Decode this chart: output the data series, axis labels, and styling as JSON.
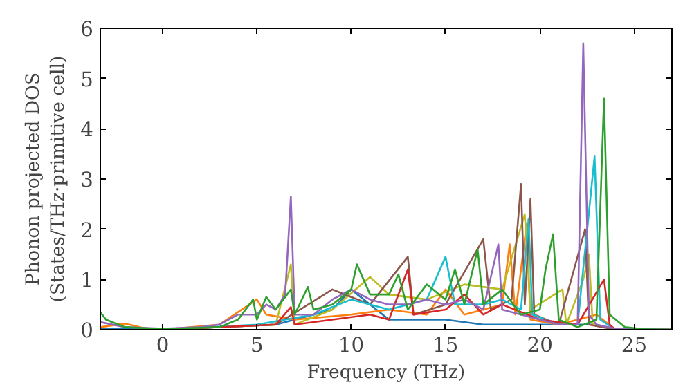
{
  "chart_data": {
    "type": "line",
    "xlabel": "Frequency (THz)",
    "ylabel": "Phonon projected DOS\n(States/THz·primitive cell)",
    "xlim": [
      -3.3,
      27
    ],
    "ylim": [
      0,
      6
    ],
    "xticks": [
      0,
      5,
      10,
      15,
      20,
      25
    ],
    "yticks": [
      0,
      1,
      2,
      3,
      4,
      5,
      6
    ],
    "grid": false,
    "series": [
      {
        "color": "#1f77b4",
        "x": [
          -3.3,
          0,
          6,
          9,
          10,
          12,
          15,
          17,
          20,
          23,
          24,
          27
        ],
        "values": [
          0.02,
          0,
          0.1,
          0.4,
          0.8,
          0.2,
          0.2,
          0.1,
          0.1,
          0.1,
          0,
          0
        ]
      },
      {
        "color": "#ff7f0e",
        "x": [
          -3.3,
          -2,
          -1,
          0,
          3,
          5,
          5.5,
          7,
          10,
          12,
          14,
          15,
          16,
          18,
          18.4,
          18.7,
          19.3,
          19.5,
          21,
          23,
          24,
          27
        ],
        "values": [
          0.05,
          0.12,
          0.03,
          0,
          0.1,
          0.6,
          0.3,
          0.2,
          0.3,
          0.4,
          0.3,
          0.8,
          0.3,
          0.5,
          1.7,
          0.3,
          2.1,
          0.2,
          0.1,
          0.3,
          0,
          0
        ]
      },
      {
        "color": "#bcbd22",
        "x": [
          0,
          6,
          6.8,
          7,
          9,
          11,
          12,
          14,
          16,
          18,
          19.2,
          19.5,
          21.2,
          21.4,
          22.3,
          22.6,
          22.8,
          24,
          27
        ],
        "values": [
          0,
          0.1,
          1.3,
          0.1,
          0.4,
          1.05,
          0.7,
          0.6,
          0.9,
          0.8,
          2.3,
          0.4,
          0.8,
          0.1,
          1.0,
          1.5,
          0.1,
          0,
          0
        ]
      },
      {
        "color": "#8c564b",
        "x": [
          0,
          6,
          9,
          11,
          13,
          13.3,
          15,
          17,
          17.4,
          18.5,
          19,
          19.2,
          19.5,
          19.7,
          21,
          22.4,
          22.6,
          24,
          27
        ],
        "values": [
          0,
          0.1,
          0.8,
          0.5,
          1.45,
          0.3,
          0.5,
          1.8,
          0.4,
          0.6,
          2.9,
          0.5,
          2.6,
          0.3,
          0.1,
          2.0,
          0.1,
          0,
          0
        ]
      },
      {
        "color": "#17becf",
        "x": [
          0,
          5,
          8,
          10,
          12,
          14,
          15,
          15.5,
          17,
          18,
          19,
          19.4,
          19.6,
          21,
          22,
          22.9,
          23.2,
          24,
          27
        ],
        "values": [
          0,
          0.1,
          0.3,
          0.6,
          0.4,
          0.6,
          1.45,
          0.5,
          0.5,
          0.6,
          0.4,
          2.2,
          0.3,
          0.1,
          0.1,
          3.45,
          0.2,
          0,
          0
        ]
      },
      {
        "color": "#d62728",
        "x": [
          0,
          6,
          6.8,
          7,
          9,
          11,
          12,
          13,
          13.3,
          15,
          16,
          17,
          18,
          20,
          22,
          23.4,
          23.7,
          24,
          27
        ],
        "values": [
          0,
          0.1,
          0.45,
          0.1,
          0.2,
          0.3,
          0.2,
          1.2,
          0.3,
          0.4,
          0.7,
          0.3,
          0.5,
          0.2,
          0.1,
          1.0,
          0.1,
          0,
          0
        ]
      },
      {
        "color": "#9467bd",
        "x": [
          -3.3,
          -2,
          0,
          2,
          3,
          4,
          5,
          5.5,
          6,
          6.5,
          6.8,
          7,
          8,
          9,
          10,
          11,
          12,
          13,
          14,
          15,
          16,
          17,
          17.8,
          18,
          19,
          20,
          21,
          22,
          22.3,
          22.6,
          23,
          24,
          27
        ],
        "values": [
          0.15,
          0.05,
          0.02,
          0.05,
          0.1,
          0.3,
          0.3,
          0.5,
          0.4,
          0.7,
          2.65,
          0.3,
          0.3,
          0.6,
          0.8,
          0.6,
          0.5,
          0.5,
          0.6,
          0.5,
          0.6,
          0.4,
          1.7,
          0.4,
          0.3,
          0.2,
          0.1,
          0.1,
          5.7,
          0.3,
          0.1,
          0.02,
          0
        ]
      },
      {
        "color": "#2ca02c",
        "x": [
          -3.3,
          -3,
          -2,
          0,
          3,
          4,
          4.8,
          5,
          5.5,
          6,
          6.8,
          7,
          7.7,
          8,
          9,
          10,
          10.3,
          11,
          12,
          12.5,
          13,
          14,
          15,
          15.5,
          16,
          16.7,
          17,
          18,
          19,
          20,
          20.3,
          20.7,
          21,
          22,
          23,
          23.4,
          23.7,
          24.5,
          25.5,
          27
        ],
        "values": [
          0.35,
          0.2,
          0.05,
          0.01,
          0.05,
          0.2,
          0.6,
          0.2,
          0.65,
          0.4,
          0.8,
          0.3,
          0.85,
          0.4,
          0.5,
          0.8,
          1.3,
          0.7,
          0.7,
          1.1,
          0.4,
          0.9,
          0.6,
          1.2,
          0.5,
          1.6,
          0.5,
          0.8,
          0.3,
          0.4,
          1.2,
          1.9,
          0.2,
          0.05,
          0.2,
          4.6,
          0.3,
          0.05,
          0.01,
          0
        ]
      }
    ]
  }
}
